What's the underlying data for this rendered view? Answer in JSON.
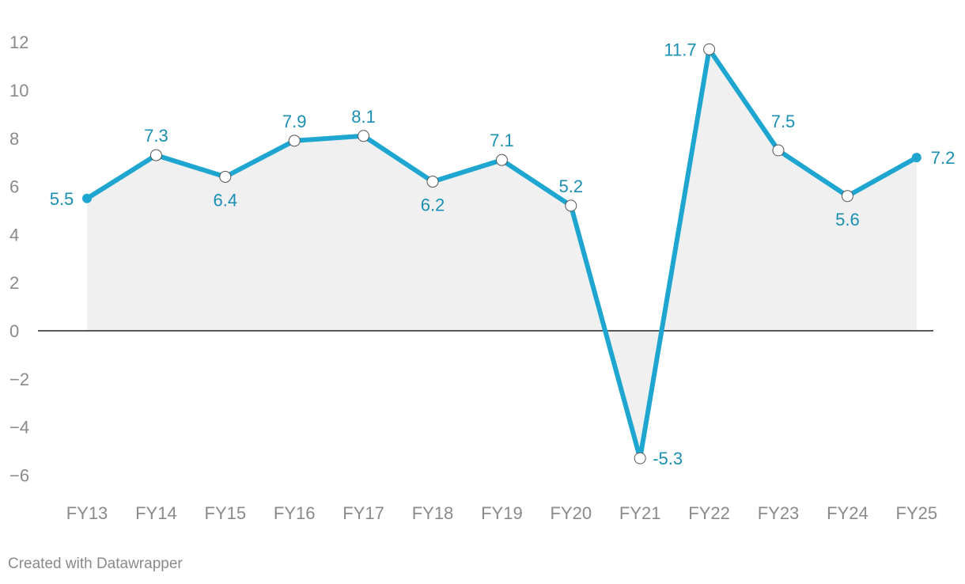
{
  "chart_data": {
    "type": "line",
    "categories": [
      "FY13",
      "FY14",
      "FY15",
      "FY16",
      "FY17",
      "FY18",
      "FY19",
      "FY20",
      "FY21",
      "FY22",
      "FY23",
      "FY24",
      "FY25"
    ],
    "values": [
      5.5,
      7.3,
      6.4,
      7.9,
      8.1,
      6.2,
      7.1,
      5.2,
      -5.3,
      11.7,
      7.5,
      5.6,
      7.2
    ],
    "value_labels": [
      "5.5",
      "7.3",
      "6.4",
      "7.9",
      "8.1",
      "6.2",
      "7.1",
      "5.2",
      "-5.3",
      "11.7",
      "7.5",
      "5.6",
      "7.2"
    ],
    "yticks": [
      12,
      10,
      8,
      6,
      4,
      2,
      0,
      -2,
      -4,
      -6
    ],
    "ytick_labels": [
      "12",
      "10",
      "8",
      "6",
      "4",
      "2",
      "0",
      "−2",
      "−4",
      "−6"
    ],
    "ylim": [
      -7,
      12
    ],
    "title": "",
    "xlabel": "",
    "ylabel": "",
    "grid": false,
    "area_fill": true,
    "colors": {
      "line": "#1ea6d1",
      "label": "#1a8fb3",
      "area": "#f0f0f0",
      "zero_line": "#222222",
      "tick": "#8a8a8a"
    }
  },
  "footer": {
    "credit": "Created with Datawrapper"
  }
}
